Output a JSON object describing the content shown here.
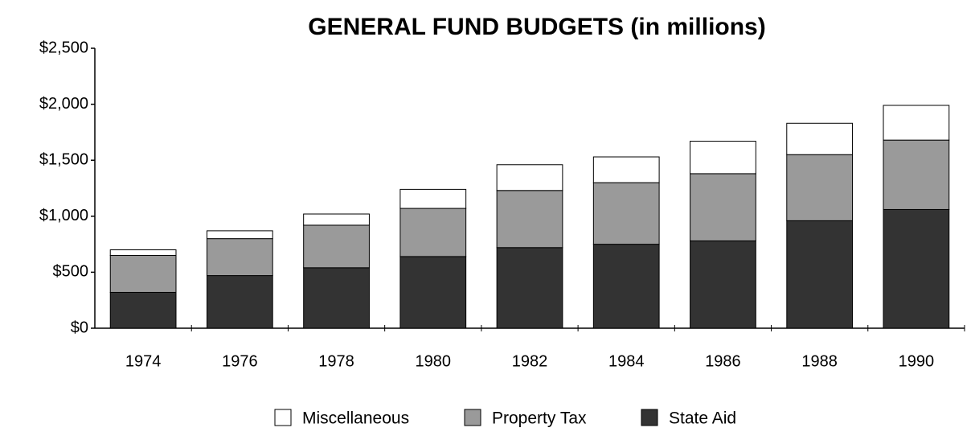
{
  "chart_data": {
    "type": "stacked_bar",
    "title": "GENERAL FUND BUDGETS  (in millions)",
    "categories": [
      "1974",
      "1976",
      "1978",
      "1980",
      "1982",
      "1984",
      "1986",
      "1988",
      "1990"
    ],
    "series": [
      {
        "name": "Miscellaneous",
        "color": "#ffffff",
        "values": [
          50,
          70,
          100,
          170,
          230,
          230,
          290,
          280,
          310
        ]
      },
      {
        "name": "Property Tax",
        "color": "#9a9a9a",
        "values": [
          330,
          330,
          380,
          430,
          510,
          550,
          600,
          590,
          620
        ]
      },
      {
        "name": "State Aid",
        "color": "#333333",
        "values": [
          320,
          470,
          540,
          640,
          720,
          750,
          780,
          960,
          1060
        ]
      }
    ],
    "ylim": [
      0,
      2500
    ],
    "yticks": [
      {
        "value": 0,
        "label": "$0"
      },
      {
        "value": 500,
        "label": "$500"
      },
      {
        "value": 1000,
        "label": "$1,000"
      },
      {
        "value": 1500,
        "label": "$1,500"
      },
      {
        "value": 2000,
        "label": "$2,000"
      },
      {
        "value": 2500,
        "label": "$2,500"
      }
    ],
    "grid": false
  }
}
